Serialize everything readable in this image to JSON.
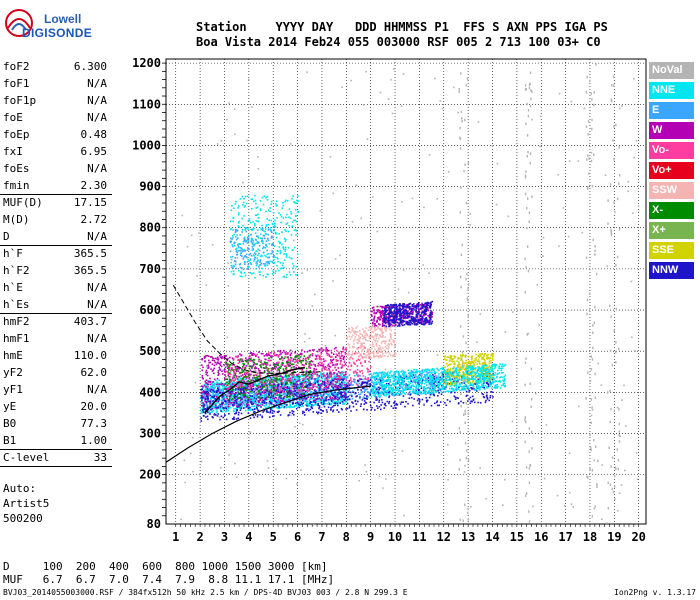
{
  "logo": {
    "line1": "Lowell",
    "line2": "DIGISONDE"
  },
  "header": {
    "labels_row": "Station    YYYY DAY   DDD HHMMSS P1  FFS S AXN PPS IGA PS",
    "values_row": "Boa Vista 2014 Feb24 055 003000 RSF 005 2 713 100 03+ C0"
  },
  "params": [
    {
      "name": "foF2",
      "value": "6.300"
    },
    {
      "name": "foF1",
      "value": "N/A"
    },
    {
      "name": "foF1p",
      "value": "N/A"
    },
    {
      "name": "foE",
      "value": "N/A"
    },
    {
      "name": "foEp",
      "value": "0.48"
    },
    {
      "name": "fxI",
      "value": "6.95"
    },
    {
      "name": "foEs",
      "value": "N/A"
    },
    {
      "name": "fmin",
      "value": "2.30"
    },
    {
      "name": "MUF(D)",
      "value": "17.15"
    },
    {
      "name": "M(D)",
      "value": "2.72"
    },
    {
      "name": "D",
      "value": "N/A"
    },
    {
      "name": "h`F",
      "value": "365.5"
    },
    {
      "name": "h`F2",
      "value": "365.5"
    },
    {
      "name": "h`E",
      "value": "N/A"
    },
    {
      "name": "h`Es",
      "value": "N/A"
    },
    {
      "name": "hmF2",
      "value": "403.7"
    },
    {
      "name": "hmF1",
      "value": "N/A"
    },
    {
      "name": "hmE",
      "value": "110.0"
    },
    {
      "name": "yF2",
      "value": "62.0"
    },
    {
      "name": "yF1",
      "value": "N/A"
    },
    {
      "name": "yE",
      "value": "20.0"
    },
    {
      "name": "B0",
      "value": "77.3"
    },
    {
      "name": "B1",
      "value": "1.00"
    },
    {
      "name": "C-level",
      "value": "33"
    }
  ],
  "auto": {
    "line1": "Auto:",
    "line2": "Artist5",
    "line3": "500200"
  },
  "legend": [
    {
      "label": "NoVal",
      "color": "#b4b4b4"
    },
    {
      "label": "NNE",
      "color": "#00e6f0"
    },
    {
      "label": "E",
      "color": "#3aa6ff"
    },
    {
      "label": "W",
      "color": "#b400b4"
    },
    {
      "label": "Vo-",
      "color": "#ff3ca0"
    },
    {
      "label": "Vo+",
      "color": "#e6001e"
    },
    {
      "label": "SSW",
      "color": "#f5b4b4"
    },
    {
      "label": "X-",
      "color": "#008c00"
    },
    {
      "label": "X+",
      "color": "#78b450"
    },
    {
      "label": "SSE",
      "color": "#d2d200"
    },
    {
      "label": "NNW",
      "color": "#1e14c8"
    }
  ],
  "bottom": {
    "d_row": "D     100  200  400  600  800 1000 1500 3000 [km]",
    "muf_row": "MUF   6.7  6.7  7.0  7.4  7.9  8.8 11.1 17.1 [MHz]"
  },
  "footer": "BVJ03_2014055003000.RSF / 384fx512h 50 kHz 2.5 km / DPS-4D BVJ03 003 / 2.8 N 299.3 E",
  "version": "Ion2Png v. 1.3.17",
  "chart_data": {
    "type": "scatter",
    "x_ticks": [
      1,
      2,
      3,
      4,
      5,
      6,
      7,
      8,
      9,
      10,
      11,
      12,
      13,
      14,
      15,
      16,
      17,
      18,
      19,
      20
    ],
    "y_ticks": [
      80,
      200,
      300,
      400,
      500,
      600,
      700,
      800,
      900,
      1000,
      1100,
      1200
    ],
    "xlim": [
      0.6,
      20.3
    ],
    "ylim": [
      80,
      1210
    ],
    "grid": true,
    "xlabel": "",
    "ylabel": "",
    "clusters": [
      {
        "series": "NNE",
        "x": [
          2.0,
          8.0
        ],
        "y": [
          350,
          430
        ],
        "n": 1400
      },
      {
        "series": "E",
        "x": [
          2.0,
          12.0
        ],
        "y": [
          360,
          420
        ],
        "n": 900
      },
      {
        "series": "W",
        "x": [
          2.0,
          8.0
        ],
        "y": [
          360,
          490
        ],
        "n": 900
      },
      {
        "series": "Vo-",
        "x": [
          3.0,
          9.0
        ],
        "y": [
          390,
          490
        ],
        "n": 500
      },
      {
        "series": "X-",
        "x": [
          3.0,
          6.5
        ],
        "y": [
          380,
          480
        ],
        "n": 300
      },
      {
        "series": "NNW",
        "x": [
          2.0,
          14.0
        ],
        "y": [
          330,
          410
        ],
        "n": 900
      },
      {
        "series": "W",
        "x": [
          9.0,
          11.5
        ],
        "y": [
          560,
          610
        ],
        "n": 400
      },
      {
        "series": "NNW",
        "x": [
          9.5,
          11.5
        ],
        "y": [
          560,
          615
        ],
        "n": 400
      },
      {
        "series": "SSW",
        "x": [
          8.0,
          10.0
        ],
        "y": [
          480,
          560
        ],
        "n": 300
      },
      {
        "series": "SSE",
        "x": [
          12.0,
          14.0
        ],
        "y": [
          420,
          490
        ],
        "n": 400
      },
      {
        "series": "NNE",
        "x": [
          9.0,
          14.5
        ],
        "y": [
          390,
          450
        ],
        "n": 900
      },
      {
        "series": "NNE",
        "x": [
          3.2,
          6.0
        ],
        "y": [
          680,
          880
        ],
        "n": 350
      },
      {
        "series": "E",
        "x": [
          3.2,
          5.0
        ],
        "y": [
          700,
          800
        ],
        "n": 150
      },
      {
        "series": "NoVal",
        "x": [
          1.0,
          20.0
        ],
        "y": [
          80,
          1200
        ],
        "n": 250
      }
    ],
    "vertical_streaks": [
      {
        "series": "NoVal",
        "x": [
          17.8,
          18.3
        ]
      },
      {
        "series": "NoVal",
        "x": [
          18.7,
          19.2
        ]
      },
      {
        "series": "NoVal",
        "x": [
          15.3,
          15.6
        ]
      },
      {
        "series": "NoVal",
        "x": [
          12.6,
          13.0
        ]
      }
    ],
    "profile_curve": {
      "color": "#000000",
      "points": [
        [
          0.6,
          230
        ],
        [
          1.5,
          265
        ],
        [
          2.5,
          300
        ],
        [
          3.5,
          330
        ],
        [
          4.5,
          355
        ],
        [
          5.5,
          375
        ],
        [
          6.5,
          395
        ],
        [
          7.5,
          405
        ],
        [
          8.5,
          412
        ],
        [
          9.0,
          415
        ]
      ]
    },
    "dashed_curve": {
      "color": "#000000",
      "points": [
        [
          0.9,
          660
        ],
        [
          1.3,
          620
        ],
        [
          1.8,
          570
        ],
        [
          2.3,
          525
        ],
        [
          2.8,
          495
        ],
        [
          3.3,
          470
        ],
        [
          3.8,
          455
        ],
        [
          4.3,
          448
        ],
        [
          5,
          446
        ],
        [
          6,
          448
        ],
        [
          7,
          450
        ]
      ]
    },
    "trace_curve": {
      "color": "#000000",
      "points": [
        [
          2.2,
          350
        ],
        [
          2.8,
          390
        ],
        [
          3.3,
          410
        ],
        [
          3.6,
          425
        ],
        [
          4.0,
          420
        ],
        [
          4.4,
          430
        ],
        [
          4.8,
          440
        ],
        [
          5.3,
          445
        ],
        [
          5.8,
          455
        ],
        [
          6.3,
          460
        ]
      ]
    }
  }
}
